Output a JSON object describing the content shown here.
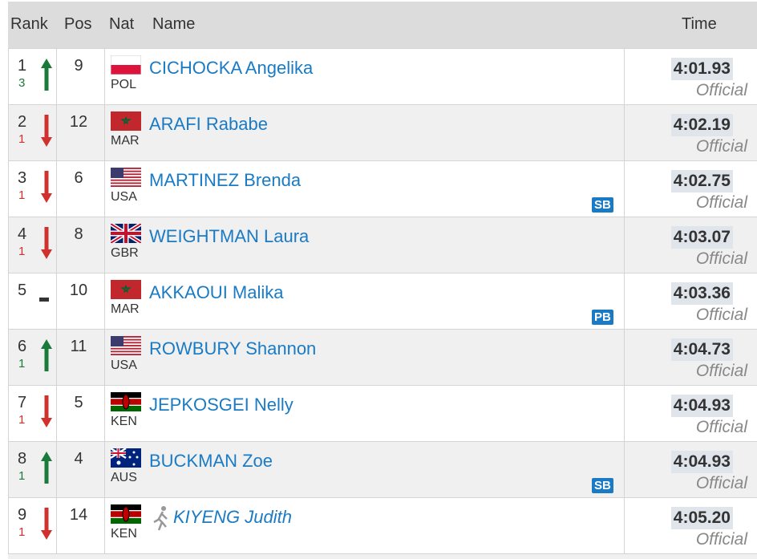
{
  "header": {
    "rank": "Rank",
    "pos": "Pos",
    "nat": "Nat",
    "name": "Name",
    "time": "Time"
  },
  "rows": [
    {
      "rank": "1",
      "change": "3",
      "direction": "up",
      "pos": "9",
      "nat": "POL",
      "name": "CICHOCKA Angelika",
      "badge": null,
      "time": "4:01.93",
      "status": "Official"
    },
    {
      "rank": "2",
      "change": "1",
      "direction": "down",
      "pos": "12",
      "nat": "MAR",
      "name": "ARAFI Rababe",
      "badge": null,
      "time": "4:02.19",
      "status": "Official"
    },
    {
      "rank": "3",
      "change": "1",
      "direction": "down",
      "pos": "6",
      "nat": "USA",
      "name": "MARTINEZ Brenda",
      "badge": "SB",
      "time": "4:02.75",
      "status": "Official"
    },
    {
      "rank": "4",
      "change": "1",
      "direction": "down",
      "pos": "8",
      "nat": "GBR",
      "name": "WEIGHTMAN Laura",
      "badge": null,
      "time": "4:03.07",
      "status": "Official"
    },
    {
      "rank": "5",
      "change": null,
      "direction": "same",
      "pos": "10",
      "nat": "MAR",
      "name": "AKKAOUI Malika",
      "badge": "PB",
      "time": "4:03.36",
      "status": "Official"
    },
    {
      "rank": "6",
      "change": "1",
      "direction": "up",
      "pos": "11",
      "nat": "USA",
      "name": "ROWBURY Shannon",
      "badge": null,
      "time": "4:04.73",
      "status": "Official"
    },
    {
      "rank": "7",
      "change": "1",
      "direction": "down",
      "pos": "5",
      "nat": "KEN",
      "name": "JEPKOSGEI Nelly",
      "badge": null,
      "time": "4:04.93",
      "status": "Official"
    },
    {
      "rank": "8",
      "change": "1",
      "direction": "up",
      "pos": "4",
      "nat": "AUS",
      "name": "BUCKMAN Zoe",
      "badge": "SB",
      "time": "4:04.93",
      "status": "Official"
    },
    {
      "rank": "9",
      "change": "1",
      "direction": "down",
      "pos": "14",
      "nat": "KEN",
      "name": "KIYENG Judith",
      "badge": null,
      "time": "4:05.20",
      "status": "Official",
      "icon": "runner"
    }
  ]
}
